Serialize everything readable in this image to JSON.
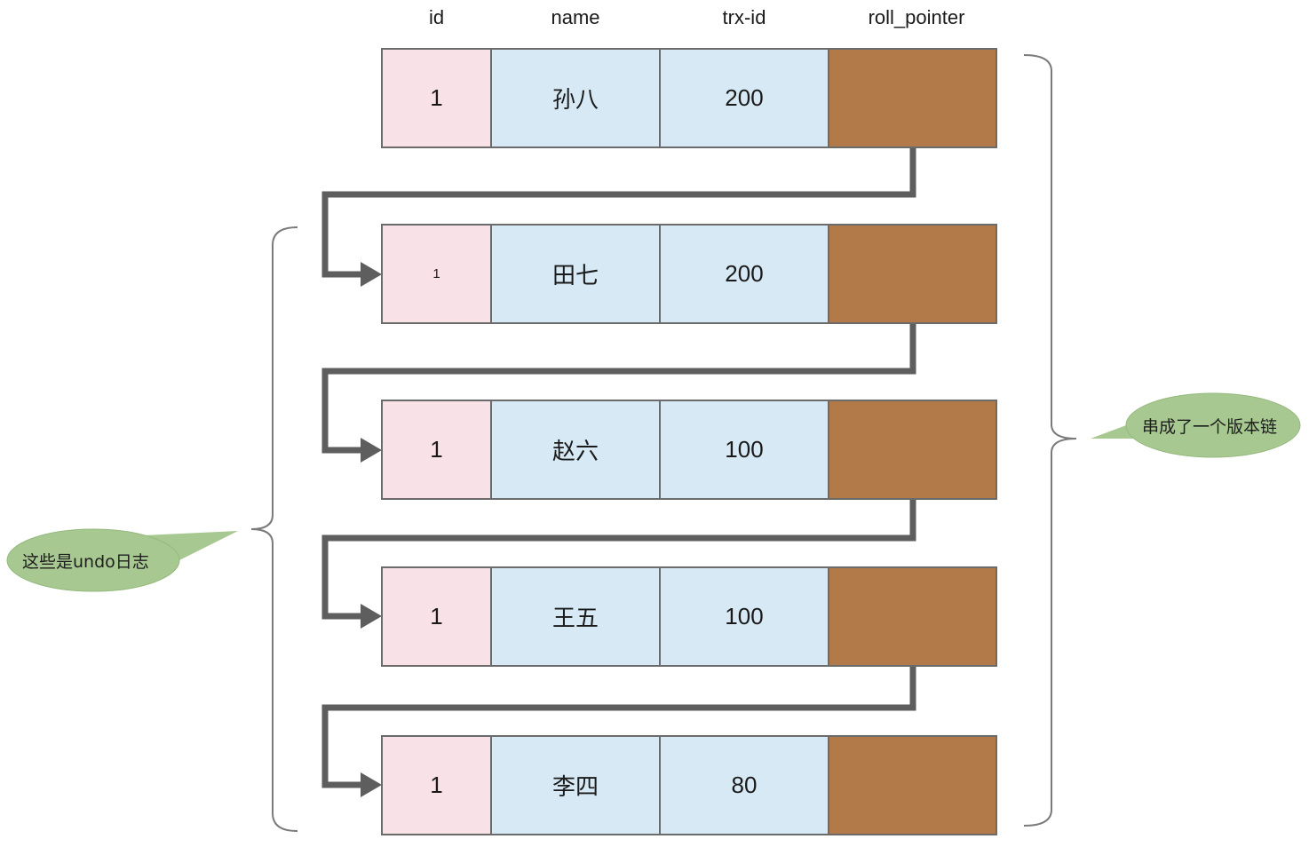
{
  "headers": {
    "id": "id",
    "name": "name",
    "trx_id": "trx-id",
    "roll_pointer": "roll_pointer"
  },
  "rows": [
    {
      "id": "1",
      "name": "孙八",
      "trx_id": "200"
    },
    {
      "id": "1",
      "name": "田七",
      "trx_id": "200"
    },
    {
      "id": "1",
      "name": "赵六",
      "trx_id": "100"
    },
    {
      "id": "1",
      "name": "王五",
      "trx_id": "100"
    },
    {
      "id": "1",
      "name": "李四",
      "trx_id": "80"
    }
  ],
  "callouts": {
    "left": "这些是undo日志",
    "right": "串成了一个版本链"
  },
  "colors": {
    "id_cell": "#f8e1e7",
    "value_cell": "#d6e9f4",
    "pointer_cell": "#b27a48",
    "arrow": "#5e5e5e",
    "bubble": "#a7c890"
  }
}
